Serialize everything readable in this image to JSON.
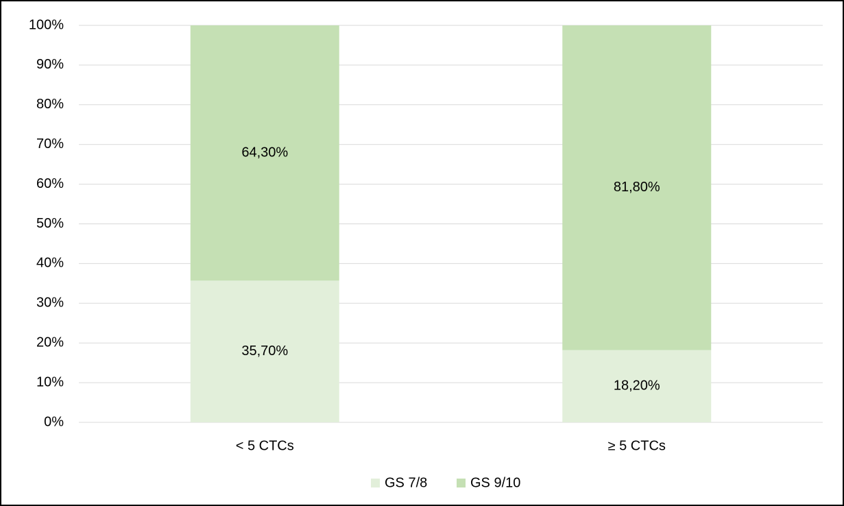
{
  "chart_data": {
    "type": "stacked_bar",
    "categories": [
      "< 5 CTCs",
      "≥ 5 CTCs"
    ],
    "series": [
      {
        "name": "GS 7/8",
        "color": "#e2efda",
        "values": [
          35.7,
          18.2
        ],
        "value_labels": [
          "35,70%",
          "18,20%"
        ]
      },
      {
        "name": "GS 9/10",
        "color": "#c5e0b4",
        "values": [
          64.3,
          81.8
        ],
        "value_labels": [
          "64,30%",
          "81,80%"
        ]
      }
    ],
    "ylim": [
      0,
      100
    ],
    "yticks": [
      {
        "value": 0,
        "label": "0%"
      },
      {
        "value": 10,
        "label": "10%"
      },
      {
        "value": 20,
        "label": "20%"
      },
      {
        "value": 30,
        "label": "30%"
      },
      {
        "value": 40,
        "label": "40%"
      },
      {
        "value": 50,
        "label": "50%"
      },
      {
        "value": 60,
        "label": "60%"
      },
      {
        "value": 70,
        "label": "70%"
      },
      {
        "value": 80,
        "label": "80%"
      },
      {
        "value": 90,
        "label": "90%"
      },
      {
        "value": 100,
        "label": "100%"
      }
    ],
    "grid": true,
    "legend": "bottom"
  }
}
